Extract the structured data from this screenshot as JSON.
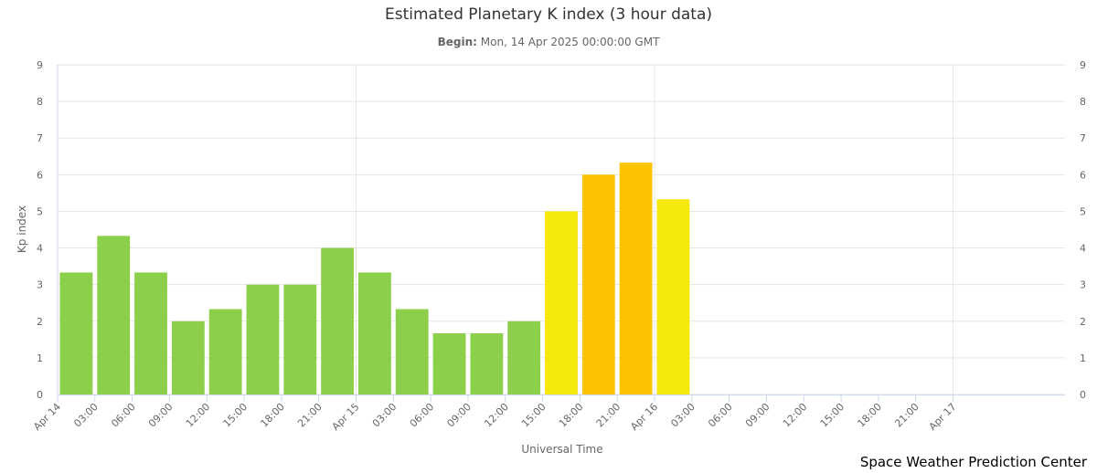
{
  "chart_data": {
    "type": "bar",
    "title": "Estimated Planetary K index (3 hour data)",
    "subtitle_label": "Begin:",
    "subtitle_value": "Mon, 14 Apr 2025 00:00:00 GMT",
    "ylabel": "Kp index",
    "xlabel": "Universal Time",
    "ylim": [
      0,
      9
    ],
    "yticks": [
      0,
      1,
      2,
      3,
      4,
      5,
      6,
      7,
      8,
      9
    ],
    "x_axis_span_hours": 81,
    "x_ticks": [
      {
        "hour": 0,
        "label": "Apr 14"
      },
      {
        "hour": 3,
        "label": "03:00"
      },
      {
        "hour": 6,
        "label": "06:00"
      },
      {
        "hour": 9,
        "label": "09:00"
      },
      {
        "hour": 12,
        "label": "12:00"
      },
      {
        "hour": 15,
        "label": "15:00"
      },
      {
        "hour": 18,
        "label": "18:00"
      },
      {
        "hour": 21,
        "label": "21:00"
      },
      {
        "hour": 24,
        "label": "Apr 15"
      },
      {
        "hour": 27,
        "label": "03:00"
      },
      {
        "hour": 30,
        "label": "06:00"
      },
      {
        "hour": 33,
        "label": "09:00"
      },
      {
        "hour": 36,
        "label": "12:00"
      },
      {
        "hour": 39,
        "label": "15:00"
      },
      {
        "hour": 42,
        "label": "18:00"
      },
      {
        "hour": 45,
        "label": "21:00"
      },
      {
        "hour": 48,
        "label": "Apr 16"
      },
      {
        "hour": 51,
        "label": "03:00"
      },
      {
        "hour": 54,
        "label": "06:00"
      },
      {
        "hour": 57,
        "label": "09:00"
      },
      {
        "hour": 60,
        "label": "12:00"
      },
      {
        "hour": 63,
        "label": "15:00"
      },
      {
        "hour": 66,
        "label": "18:00"
      },
      {
        "hour": 69,
        "label": "21:00"
      },
      {
        "hour": 72,
        "label": "Apr 17"
      }
    ],
    "values": [
      3.33,
      4.33,
      3.33,
      2.0,
      2.33,
      3.0,
      3.0,
      4.0,
      3.33,
      2.33,
      1.67,
      1.67,
      2.0,
      5.0,
      6.0,
      6.33,
      5.33
    ],
    "colors": {
      "below_5": "#8ccf4a",
      "kp_5": "#f4e80c",
      "kp_6": "#fcc400",
      "grid": "#e6e6e6",
      "axis": "#ccd6eb",
      "label": "#666666"
    },
    "grid": true,
    "credit": "Space Weather Prediction Center"
  }
}
